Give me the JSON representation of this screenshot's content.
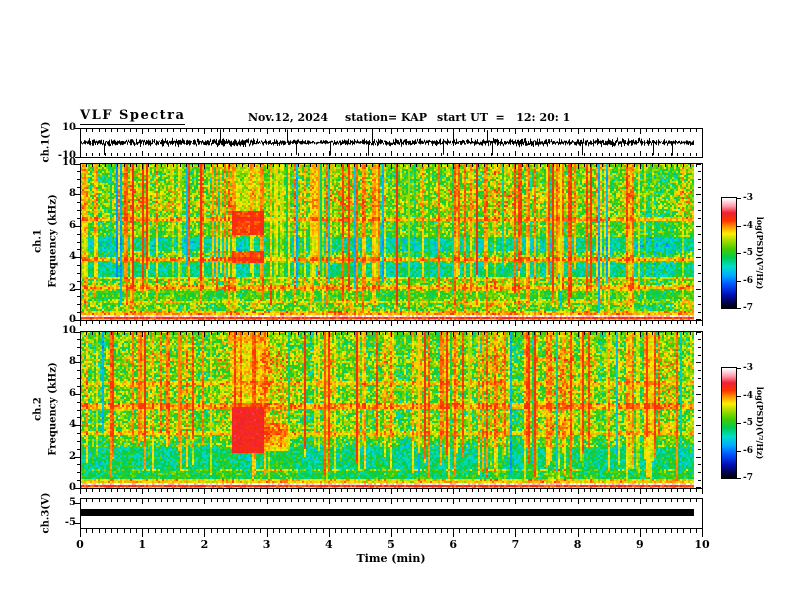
{
  "header": {
    "title": "VLF Spectra",
    "date": "Nov.12, 2024",
    "station": "station= KAP",
    "start_ut": "start UT  =   12: 20: 1"
  },
  "time_axis": {
    "label": "Time (min)",
    "min": 0,
    "max": 10,
    "major_ticks": [
      "0",
      "1",
      "2",
      "3",
      "4",
      "5",
      "6",
      "7",
      "8",
      "9",
      "10"
    ],
    "minor_step_min": 0.1,
    "data_end_min": 9.87
  },
  "colorbar": {
    "label": "log(PSD)(V²/Hz)",
    "ticks": [
      "-3",
      "-4",
      "-5",
      "-6",
      "-7"
    ],
    "vmax": -3,
    "vmin": -7,
    "colormap_stops": [
      [
        0.0,
        "#000000"
      ],
      [
        0.05,
        "#000044"
      ],
      [
        0.13,
        "#0011bb"
      ],
      [
        0.22,
        "#0055ff"
      ],
      [
        0.3,
        "#00aaff"
      ],
      [
        0.38,
        "#00ddcc"
      ],
      [
        0.46,
        "#00cc55"
      ],
      [
        0.54,
        "#44cc00"
      ],
      [
        0.62,
        "#aadd00"
      ],
      [
        0.68,
        "#ffee00"
      ],
      [
        0.74,
        "#ff9900"
      ],
      [
        0.8,
        "#ff3300"
      ],
      [
        0.87,
        "#ee2233"
      ],
      [
        0.93,
        "#ff99aa"
      ],
      [
        1.0,
        "#ffffff"
      ]
    ]
  },
  "chart_data": [
    {
      "panel": "ch1_waveform",
      "type": "line",
      "ylabel": "ch.1(V)",
      "ylim": [
        -10,
        10
      ],
      "yticks": [
        "10",
        "-10"
      ],
      "ytick_values": [
        10,
        -10
      ],
      "signal": {
        "kind": "broadband-noise",
        "typical_peak_V": 7,
        "max_peak_V": 10,
        "seed": 11
      }
    },
    {
      "panel": "ch1_spectrogram",
      "type": "heatmap",
      "ylabel_outer": "ch.1",
      "ylabel_inner": "Frequency (kHz)",
      "ylim": [
        0,
        10
      ],
      "yticks": [
        "10",
        "8",
        "6",
        "4",
        "2",
        "0"
      ],
      "ytick_values": [
        10,
        8,
        6,
        4,
        2,
        0
      ],
      "zlim": [
        -7,
        -3
      ],
      "seed": 21,
      "base_level": 0.56,
      "texture": 0.15,
      "hot_bottom_khz": 0.32,
      "vlines": {
        "count": 150,
        "level": 0.8
      },
      "bands": [
        {
          "f": [
            9.55,
            10.0
          ],
          "level": 0.6,
          "mix": 0.35
        },
        {
          "f": [
            6.25,
            6.5
          ],
          "level": 0.8,
          "mix": 0.7
        },
        {
          "f": [
            5.3,
            6.2
          ],
          "level": 0.58,
          "mix": 0.25
        },
        {
          "f": [
            4.35,
            5.25
          ],
          "level": 0.3,
          "mix": 0.5
        },
        {
          "f": [
            3.72,
            3.95
          ],
          "level": 0.8,
          "mix": 0.75
        },
        {
          "f": [
            2.78,
            3.62
          ],
          "level": 0.33,
          "mix": 0.55
        },
        {
          "f": [
            2.6,
            2.78
          ],
          "level": 0.74,
          "mix": 0.5
        },
        {
          "f": [
            1.98,
            2.22
          ],
          "level": 0.79,
          "mix": 0.65
        },
        {
          "f": [
            1.4,
            1.8
          ],
          "level": 0.46,
          "mix": 0.45
        },
        {
          "f": [
            1.05,
            1.25
          ],
          "level": 0.72,
          "mix": 0.45
        },
        {
          "f": [
            0.32,
            0.6
          ],
          "level": 0.82,
          "mix": 0.65
        }
      ],
      "events": [
        {
          "t": [
            2.42,
            2.95
          ],
          "f": [
            5.4,
            6.9
          ],
          "level": 0.84,
          "mix": 0.85
        },
        {
          "t": [
            2.42,
            2.95
          ],
          "f": [
            3.6,
            4.45
          ],
          "level": 0.84,
          "mix": 0.8
        },
        {
          "t": [
            2.42,
            2.95
          ],
          "f": [
            6.9,
            9.9
          ],
          "level": 0.72,
          "mix": 0.45
        },
        {
          "t": [
            2.97,
            3.38
          ],
          "f": [
            2.3,
            9.9
          ],
          "level": 0.6,
          "mix": 0.4
        },
        {
          "t": [
            8.78,
            8.88
          ],
          "f": [
            0.8,
            9.9
          ],
          "level": 0.8,
          "mix": 0.55
        }
      ]
    },
    {
      "panel": "ch2_spectrogram",
      "type": "heatmap",
      "ylabel_outer": "ch.2",
      "ylabel_inner": "Frequency (kHz)",
      "ylim": [
        0,
        10
      ],
      "yticks": [
        "10",
        "8",
        "6",
        "4",
        "2",
        "0"
      ],
      "ytick_values": [
        10,
        8,
        6,
        4,
        2,
        0
      ],
      "zlim": [
        -7,
        -3
      ],
      "seed": 57,
      "base_level": 0.57,
      "texture": 0.15,
      "hot_bottom_khz": 0.3,
      "vlines": {
        "count": 140,
        "level": 0.8
      },
      "bands": [
        {
          "f": [
            9.3,
            10.0
          ],
          "level": 0.62,
          "mix": 0.3
        },
        {
          "f": [
            6.55,
            6.8
          ],
          "level": 0.78,
          "mix": 0.55
        },
        {
          "f": [
            5.0,
            5.4
          ],
          "level": 0.81,
          "mix": 0.7
        },
        {
          "f": [
            4.0,
            4.2
          ],
          "level": 0.72,
          "mix": 0.35
        },
        {
          "f": [
            3.35,
            3.62
          ],
          "level": 0.78,
          "mix": 0.55
        },
        {
          "f": [
            2.85,
            3.1
          ],
          "level": 0.5,
          "mix": 0.3
        },
        {
          "f": [
            1.15,
            2.6
          ],
          "level": 0.36,
          "mix": 0.5
        },
        {
          "f": [
            0.62,
            1.12
          ],
          "level": 0.41,
          "mix": 0.45
        },
        {
          "f": [
            0.32,
            0.62
          ],
          "level": 0.8,
          "mix": 0.55
        }
      ],
      "events": [
        {
          "t": [
            2.42,
            2.95
          ],
          "f": [
            2.2,
            5.2
          ],
          "level": 0.86,
          "mix": 0.95
        },
        {
          "t": [
            2.42,
            2.95
          ],
          "f": [
            5.2,
            9.2
          ],
          "level": 0.8,
          "mix": 0.55
        },
        {
          "t": [
            2.35,
            2.95
          ],
          "f": [
            9.2,
            10.0
          ],
          "level": 0.79,
          "mix": 0.75
        },
        {
          "t": [
            2.97,
            3.35
          ],
          "f": [
            2.4,
            4.1
          ],
          "level": 0.82,
          "mix": 0.55
        },
        {
          "t": [
            8.78,
            8.9
          ],
          "f": [
            1.2,
            9.9
          ],
          "level": 0.82,
          "mix": 0.55
        }
      ]
    },
    {
      "panel": "ch3_waveform",
      "type": "line",
      "ylabel": "ch.3(V)",
      "ylim": [
        -7.5,
        7.5
      ],
      "yticks": [
        "5",
        "-5"
      ],
      "ytick_values": [
        5,
        -5
      ],
      "signal": {
        "kind": "constant-saturated-bar",
        "center_V": 0.2,
        "halfwidth_V": 1.7
      }
    }
  ]
}
